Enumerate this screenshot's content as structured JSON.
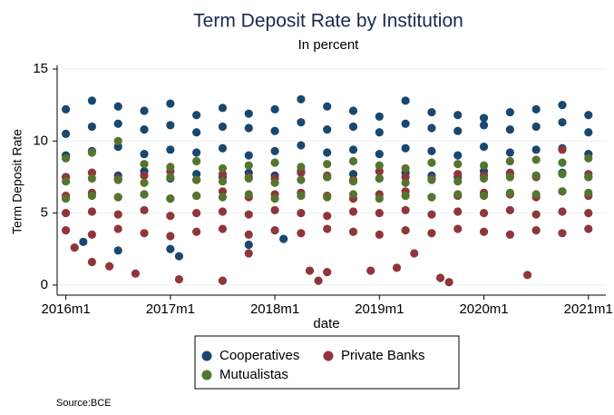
{
  "chart_data": {
    "type": "scatter",
    "title": "Term Deposit Rate by Institution",
    "subtitle": "In percent",
    "x_label": "date",
    "y_label": "Term Deposit Rate",
    "source": "Source:BCE",
    "xlim": [
      671,
      734
    ],
    "xticks": [
      {
        "value": 672,
        "label": "2016m1"
      },
      {
        "value": 684,
        "label": "2017m1"
      },
      {
        "value": 696,
        "label": "2018m1"
      },
      {
        "value": 708,
        "label": "2019m1"
      },
      {
        "value": 720,
        "label": "2020m1"
      },
      {
        "value": 732,
        "label": "2021m1"
      }
    ],
    "ylim": [
      -0.7,
      15
    ],
    "yticks": [
      0,
      5,
      10,
      15
    ],
    "grid": true,
    "series": [
      {
        "name": "Cooperatives",
        "color": "#1a476f",
        "x": [
          672,
          672,
          672,
          672,
          675,
          675,
          675,
          675,
          678,
          678,
          678,
          678,
          681,
          681,
          681,
          681,
          684,
          684,
          684,
          684,
          687,
          687,
          687,
          687,
          690,
          690,
          690,
          690,
          693,
          693,
          693,
          693,
          696,
          696,
          696,
          696,
          699,
          699,
          699,
          699,
          702,
          702,
          702,
          702,
          705,
          705,
          705,
          705,
          708,
          708,
          708,
          708,
          711,
          711,
          711,
          711,
          714,
          714,
          714,
          714,
          717,
          717,
          717,
          717,
          720,
          720,
          720,
          720,
          723,
          723,
          723,
          723,
          726,
          726,
          726,
          726,
          729,
          729,
          729,
          729,
          732,
          732,
          732,
          732,
          674,
          678,
          684,
          685,
          693,
          697
        ],
        "y": [
          7.5,
          9,
          10.5,
          12.2,
          7.8,
          9.3,
          11,
          12.8,
          7.6,
          9.6,
          11.2,
          12.4,
          7.9,
          9.1,
          10.8,
          12.1,
          7.4,
          9.4,
          11.1,
          12.6,
          7.7,
          9.2,
          10.6,
          11.8,
          7.5,
          9.5,
          11,
          12.3,
          7.8,
          9,
          10.9,
          11.9,
          7.6,
          9.3,
          10.7,
          12.2,
          7.9,
          9.7,
          11.3,
          12.9,
          7.5,
          9.2,
          10.8,
          12.4,
          7.7,
          9.4,
          11,
          12.1,
          7.4,
          9.1,
          10.6,
          11.7,
          7.8,
          9.5,
          11.2,
          12.8,
          7.6,
          9.3,
          10.9,
          12,
          7.5,
          9,
          10.7,
          11.8,
          7.9,
          9.6,
          11.1,
          11.6,
          7.7,
          9.2,
          10.8,
          12,
          7.6,
          9.4,
          11,
          12.2,
          7.8,
          9.5,
          11.3,
          12.5,
          7.5,
          9.1,
          10.6,
          11.8,
          3,
          2.4,
          2.5,
          2,
          2.8,
          3.2
        ]
      },
      {
        "name": "Private Banks",
        "color": "#90353b",
        "x": [
          672,
          672,
          672,
          672,
          675,
          675,
          675,
          675,
          678,
          678,
          678,
          678,
          681,
          681,
          681,
          681,
          684,
          684,
          684,
          684,
          687,
          687,
          687,
          687,
          690,
          690,
          690,
          690,
          693,
          693,
          693,
          693,
          696,
          696,
          696,
          696,
          699,
          699,
          699,
          699,
          702,
          702,
          702,
          702,
          705,
          705,
          705,
          705,
          708,
          708,
          708,
          708,
          711,
          711,
          711,
          711,
          714,
          714,
          714,
          714,
          717,
          717,
          717,
          717,
          720,
          720,
          720,
          720,
          723,
          723,
          723,
          723,
          726,
          726,
          726,
          726,
          729,
          729,
          729,
          729,
          732,
          732,
          732,
          732,
          673,
          675,
          677,
          680,
          685,
          690,
          693,
          700,
          701,
          702,
          707,
          710,
          712,
          715,
          716,
          725
        ],
        "y": [
          3.8,
          5,
          6.2,
          7.5,
          3.5,
          5.1,
          6.4,
          7.8,
          3.9,
          4.9,
          6.1,
          7.4,
          3.6,
          5.2,
          6.3,
          7.6,
          3.4,
          4.8,
          6,
          7.9,
          3.7,
          5,
          6.2,
          7.3,
          3.9,
          5.1,
          6.5,
          7.7,
          3.5,
          4.9,
          6.1,
          7.5,
          3.8,
          5.2,
          6.3,
          7.4,
          3.6,
          5,
          6.4,
          7.8,
          3.9,
          4.8,
          6.2,
          7.6,
          3.7,
          5.1,
          6,
          7.3,
          3.5,
          5,
          6.3,
          7.9,
          3.8,
          5.2,
          6.5,
          7.5,
          3.6,
          4.9,
          6.1,
          7.4,
          3.9,
          5.1,
          6.2,
          7.7,
          3.7,
          5,
          6.4,
          7.6,
          3.5,
          5.2,
          6.3,
          7.8,
          3.8,
          4.9,
          6.1,
          7.5,
          3.6,
          5.1,
          6.5,
          9.4,
          3.9,
          5,
          6.2,
          7.7,
          2.6,
          1.6,
          1.3,
          0.8,
          0.4,
          0.3,
          2.2,
          1,
          0.3,
          0.9,
          1,
          1.2,
          2.2,
          0.5,
          0.2,
          0.7
        ]
      },
      {
        "name": "Mutualistas",
        "color": "#55752f",
        "x": [
          672,
          672,
          672,
          675,
          675,
          675,
          678,
          678,
          678,
          681,
          681,
          681,
          684,
          684,
          684,
          687,
          687,
          687,
          690,
          690,
          690,
          693,
          693,
          693,
          696,
          696,
          696,
          699,
          699,
          699,
          702,
          702,
          702,
          705,
          705,
          705,
          708,
          708,
          708,
          711,
          711,
          711,
          714,
          714,
          714,
          717,
          717,
          717,
          720,
          720,
          720,
          723,
          723,
          723,
          726,
          726,
          726,
          729,
          729,
          729,
          732,
          732,
          732
        ],
        "y": [
          6,
          7.2,
          8.8,
          6.2,
          7.4,
          9.2,
          6.1,
          7.3,
          10,
          6.3,
          7.1,
          8.4,
          6,
          7.5,
          8.2,
          6.2,
          7.3,
          8.6,
          6.1,
          7.2,
          8.1,
          6.3,
          7.4,
          8.3,
          6,
          7.1,
          8.5,
          6.2,
          7.3,
          8.2,
          6.1,
          7.5,
          8.4,
          6.3,
          7.2,
          8.6,
          6,
          7.4,
          8.3,
          6.2,
          7.1,
          8.1,
          6.1,
          7.3,
          8.5,
          6.3,
          7.2,
          8.4,
          6.2,
          7.4,
          8.3,
          6.4,
          7.5,
          8.6,
          6.3,
          7.6,
          8.7,
          6.5,
          7.7,
          8.5,
          6.4,
          7.5,
          8.8
        ]
      }
    ],
    "legend": "bottom"
  }
}
